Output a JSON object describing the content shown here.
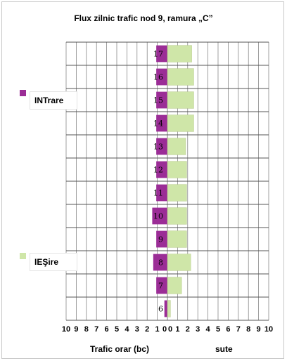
{
  "chart_data": {
    "type": "bar",
    "orientation": "horizontal-butterfly",
    "title": "Flux zilnic trafic nod 9, ramura „C”",
    "xlabel": "Trafic orar (bc)",
    "xunit": "sute",
    "xticks": [
      "10",
      "9",
      "8",
      "7",
      "6",
      "5",
      "4",
      "3",
      "2",
      "1",
      "0",
      "0",
      "1",
      "2",
      "3",
      "4",
      "5",
      "6",
      "7",
      "8",
      "9",
      "10"
    ],
    "xlim": [
      -10,
      10
    ],
    "categories": [
      "17",
      "16",
      "15",
      "14",
      "13",
      "12",
      "11",
      "10",
      "9",
      "8",
      "7",
      "6"
    ],
    "series": [
      {
        "name": "INTrare",
        "color": "#9b2d96",
        "side": "left",
        "values": [
          1.1,
          1.1,
          1.1,
          1.1,
          1.1,
          1.1,
          1.1,
          1.5,
          1.1,
          1.4,
          1.1,
          0.3
        ]
      },
      {
        "name": "IEŞire",
        "color": "#cfe6a8",
        "side": "right",
        "values": [
          2.4,
          2.6,
          2.6,
          2.6,
          1.8,
          1.9,
          1.9,
          1.9,
          1.9,
          2.3,
          1.4,
          0.3
        ]
      }
    ],
    "grid": true,
    "legend": "left"
  }
}
